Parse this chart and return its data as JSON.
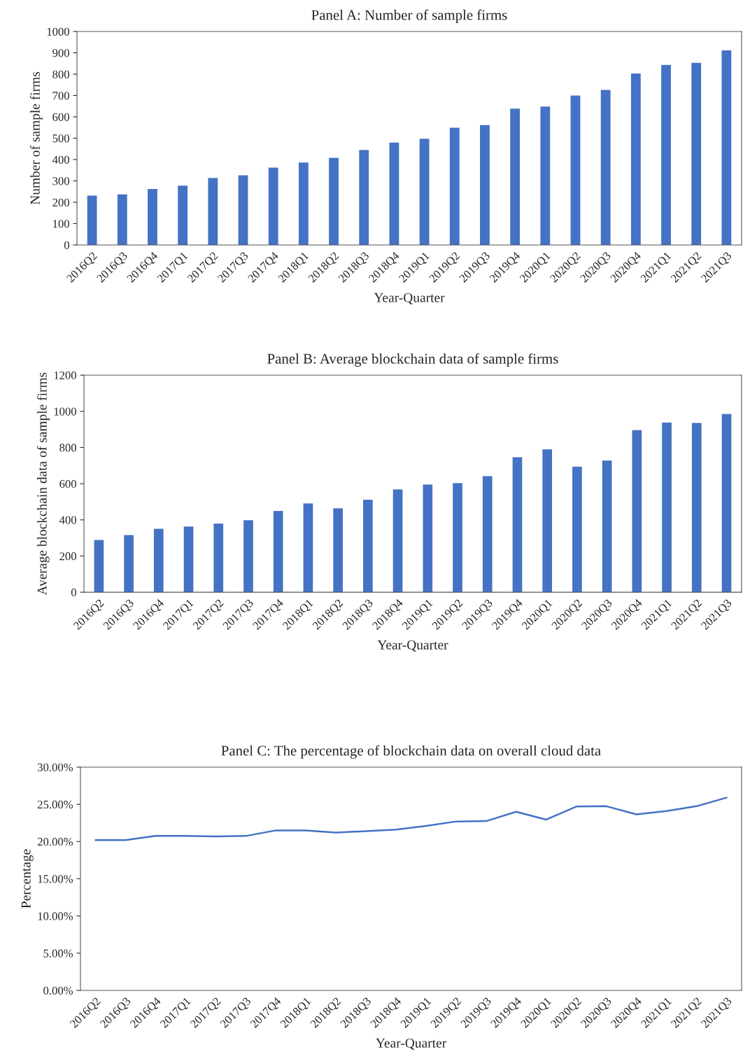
{
  "chart_data": [
    {
      "type": "bar",
      "title": "Panel A: Number of sample firms",
      "xlabel": "Year-Quarter",
      "ylabel": "Number of sample firms",
      "categories": [
        "2016Q2",
        "2016Q3",
        "2016Q4",
        "2017Q1",
        "2017Q2",
        "2017Q3",
        "2017Q4",
        "2018Q1",
        "2018Q2",
        "2018Q3",
        "2018Q4",
        "2019Q1",
        "2019Q2",
        "2019Q3",
        "2019Q4",
        "2020Q1",
        "2020Q2",
        "2020Q3",
        "2020Q4",
        "2021Q1",
        "2021Q2",
        "2021Q3"
      ],
      "values": [
        231,
        237,
        262,
        278,
        314,
        326,
        362,
        386,
        408,
        445,
        479,
        497,
        549,
        561,
        638,
        648,
        700,
        726,
        803,
        843,
        853,
        911
      ],
      "color": "#4472c4",
      "ylim": [
        0,
        1000
      ],
      "yticks": [
        0,
        100,
        200,
        300,
        400,
        500,
        600,
        700,
        800,
        900,
        1000
      ],
      "grid": false,
      "legend": false
    },
    {
      "type": "bar",
      "title": "Panel B: Average blockchain data of sample firms",
      "xlabel": "Year-Quarter",
      "ylabel": "Average blockchain data of sample firms",
      "categories": [
        "2016Q2",
        "2016Q3",
        "2016Q4",
        "2017Q1",
        "2017Q2",
        "2017Q3",
        "2017Q4",
        "2018Q1",
        "2018Q2",
        "2018Q3",
        "2018Q4",
        "2019Q1",
        "2019Q2",
        "2019Q3",
        "2019Q4",
        "2020Q1",
        "2020Q2",
        "2020Q3",
        "2020Q4",
        "2021Q1",
        "2021Q2",
        "2021Q3"
      ],
      "values": [
        289,
        316,
        351,
        363,
        380,
        398,
        449,
        491,
        464,
        511,
        568,
        595,
        603,
        642,
        746,
        790,
        694,
        728,
        896,
        938,
        936,
        985
      ],
      "color": "#4472c4",
      "ylim": [
        0,
        1200
      ],
      "yticks": [
        0,
        200,
        400,
        600,
        800,
        1000,
        1200
      ],
      "grid": false,
      "legend": false
    },
    {
      "type": "line",
      "title": "Panel C: The percentage of blockchain data on overall cloud data",
      "xlabel": "Year-Quarter",
      "ylabel": "Percentage",
      "categories": [
        "2016Q2",
        "2016Q3",
        "2016Q4",
        "2017Q1",
        "2017Q2",
        "2017Q3",
        "2017Q4",
        "2018Q1",
        "2018Q2",
        "2018Q3",
        "2018Q4",
        "2019Q1",
        "2019Q2",
        "2019Q3",
        "2019Q4",
        "2020Q1",
        "2020Q2",
        "2020Q3",
        "2020Q4",
        "2021Q1",
        "2021Q2",
        "2021Q3"
      ],
      "values": [
        20.2,
        20.2,
        20.75,
        20.75,
        20.7,
        20.75,
        21.5,
        21.5,
        21.2,
        21.4,
        21.6,
        22.1,
        22.7,
        22.75,
        24.0,
        22.95,
        24.7,
        24.75,
        23.65,
        24.1,
        24.75,
        25.9
      ],
      "color": "#4472c4",
      "ylim": [
        0,
        30
      ],
      "yticks": [
        {
          "value": 0,
          "label": "0.00%"
        },
        {
          "value": 5,
          "label": "5.00%"
        },
        {
          "value": 10,
          "label": "10.00%"
        },
        {
          "value": 15,
          "label": "15.00%"
        },
        {
          "value": 20,
          "label": "20.00%"
        },
        {
          "value": 25,
          "label": "25.00%"
        },
        {
          "value": 30,
          "label": "30.00%"
        }
      ],
      "grid": false,
      "legend": false,
      "marker": "none",
      "line_style": "solid"
    }
  ]
}
